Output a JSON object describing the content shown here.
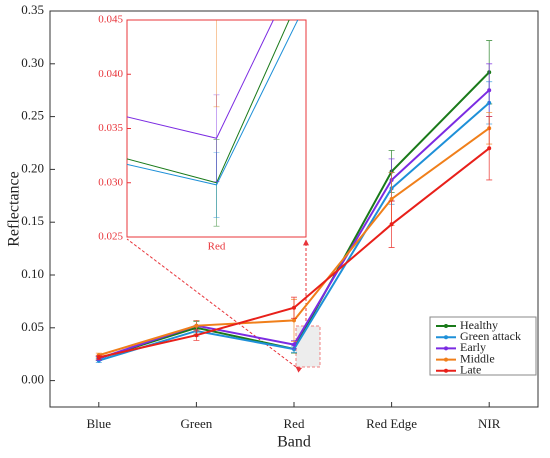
{
  "chart_data": {
    "type": "line",
    "x_label": "Band",
    "y_label": "Reflectance",
    "categories": [
      "Blue",
      "Green",
      "Red",
      "Red Edge",
      "NIR"
    ],
    "ylim": [
      -0.025,
      0.35
    ],
    "yticks": [
      {
        "value": 0,
        "label": "0.00"
      },
      {
        "value": 0.05,
        "label": "0.05"
      },
      {
        "value": 0.1,
        "label": "0.10"
      },
      {
        "value": 0.15,
        "label": "0.15"
      },
      {
        "value": 0.2,
        "label": "0.20"
      },
      {
        "value": 0.25,
        "label": "0.25"
      },
      {
        "value": 0.3,
        "label": "0.30"
      },
      {
        "value": 0.35,
        "label": "0.35"
      }
    ],
    "legend": "lower right",
    "series": [
      {
        "name": "Healthy",
        "color": "#1a7a1a",
        "values": [
          0.021,
          0.05,
          0.03,
          0.198,
          0.292
        ],
        "errors": [
          0.002,
          0.006,
          0.004,
          0.02,
          0.03
        ]
      },
      {
        "name": "Green attack",
        "color": "#1e90d8",
        "values": [
          0.019,
          0.047,
          0.0298,
          0.182,
          0.263
        ],
        "errors": [
          0.002,
          0.005,
          0.003,
          0.015,
          0.02
        ]
      },
      {
        "name": "Early",
        "color": "#7b2be2",
        "values": [
          0.021,
          0.052,
          0.0341,
          0.19,
          0.275
        ],
        "errors": [
          0.002,
          0.005,
          0.004,
          0.02,
          0.025
        ]
      },
      {
        "name": "Middle",
        "color": "#f07f1a",
        "values": [
          0.024,
          0.052,
          0.057,
          0.172,
          0.239
        ],
        "errors": [
          0.002,
          0.005,
          0.02,
          0.025,
          0.015
        ]
      },
      {
        "name": "Late",
        "color": "#e8201a",
        "values": [
          0.022,
          0.043,
          0.069,
          0.148,
          0.22
        ],
        "errors": [
          0.002,
          0.005,
          0.01,
          0.022,
          0.03
        ]
      }
    ],
    "inset": {
      "category": "Red",
      "ylim": [
        0.025,
        0.045
      ],
      "yticks": [
        {
          "value": 0.025,
          "label": "0.025"
        },
        {
          "value": 0.03,
          "label": "0.030"
        },
        {
          "value": 0.035,
          "label": "0.035"
        },
        {
          "value": 0.04,
          "label": "0.040"
        },
        {
          "value": 0.045,
          "label": "0.045"
        }
      ]
    }
  }
}
